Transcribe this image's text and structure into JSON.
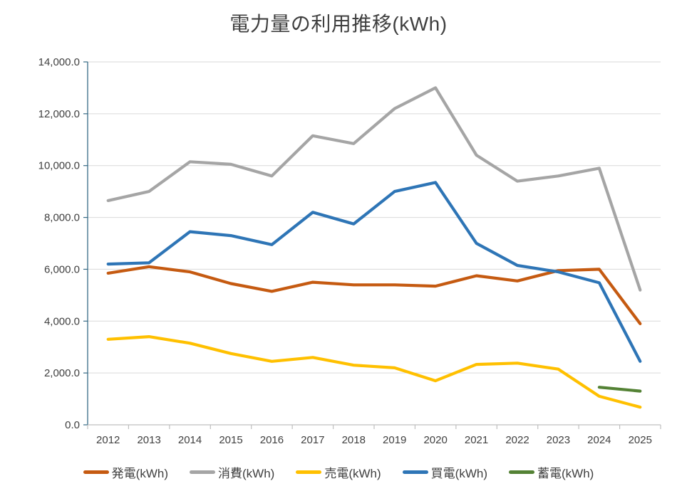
{
  "chart_data": {
    "type": "line",
    "title": "電力量の利用推移(kWh)",
    "categories": [
      "2012",
      "2013",
      "2014",
      "2015",
      "2016",
      "2017",
      "2018",
      "2019",
      "2020",
      "2021",
      "2022",
      "2023",
      "2024",
      "2025"
    ],
    "y_axis": {
      "min": 0,
      "max": 14000,
      "step": 2000,
      "tick_labels": [
        "0.0",
        "2,000.0",
        "4,000.0",
        "6,000.0",
        "8,000.0",
        "10,000.0",
        "12,000.0",
        "14,000.0"
      ]
    },
    "grid": true,
    "legend_position": "bottom",
    "series": [
      {
        "name": "発電(kWh)",
        "color": "#C55A11",
        "values": [
          5850,
          6100,
          5900,
          5450,
          5150,
          5500,
          5400,
          5400,
          5350,
          5750,
          5550,
          5950,
          6000,
          3900
        ]
      },
      {
        "name": "消費(kWh)",
        "color": "#A5A5A5",
        "values": [
          8650,
          9000,
          10150,
          10050,
          9600,
          11150,
          10850,
          12200,
          13000,
          10400,
          9400,
          9600,
          9900,
          5200
        ]
      },
      {
        "name": "売電(kWh)",
        "color": "#FFC000",
        "values": [
          3300,
          3400,
          3150,
          2750,
          2450,
          2600,
          2300,
          2200,
          1700,
          2330,
          2380,
          2150,
          1100,
          680
        ]
      },
      {
        "name": "買電(kWh)",
        "color": "#2E75B6",
        "values": [
          6200,
          6250,
          7450,
          7300,
          6950,
          8200,
          7750,
          9000,
          9350,
          7000,
          6150,
          5900,
          5480,
          2450
        ]
      },
      {
        "name": "蓄電(kWh)",
        "color": "#548235",
        "values": [
          null,
          null,
          null,
          null,
          null,
          null,
          null,
          null,
          null,
          null,
          null,
          null,
          1450,
          1300
        ]
      }
    ],
    "style": {
      "y_axis_color": "#366A85",
      "x_axis_color": "#BFBFBF",
      "gridline_color": "#D9D9D9",
      "label_color": "#404040",
      "line_width": 4.2
    }
  }
}
